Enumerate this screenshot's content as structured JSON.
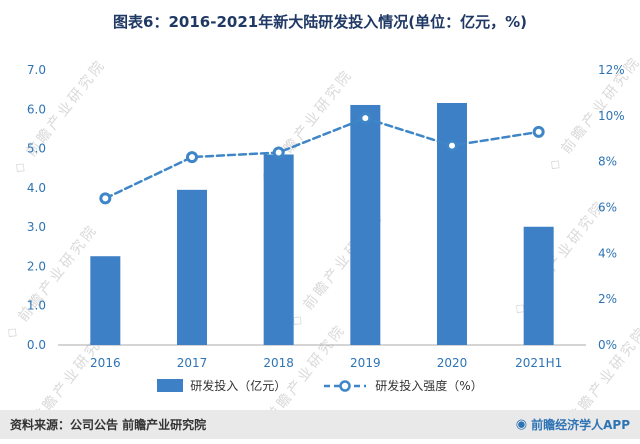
{
  "page": {
    "watermark_text": "前瞻产业研究院",
    "footer": {
      "source": "资料来源：公司公告 前瞻产业研究院",
      "brand": "前瞻经济学人APP",
      "brand_icon": "qianzhan-logo-icon"
    }
  },
  "chart_data": {
    "type": "bar",
    "subtype": "bar+line combo, dual axis",
    "title": "图表6：2016-2021年新大陆研发投入情况(单位：亿元，%)",
    "categories": [
      "2016",
      "2017",
      "2018",
      "2019",
      "2020",
      "2021H1"
    ],
    "series": [
      {
        "name": "研发投入（亿元）",
        "type": "bar",
        "axis": "left",
        "values": [
          2.26,
          3.95,
          4.85,
          6.11,
          6.16,
          3.01
        ]
      },
      {
        "name": "研发投入强度（%）",
        "type": "line",
        "axis": "right",
        "values": [
          6.4,
          8.2,
          8.4,
          9.9,
          8.7,
          9.3
        ]
      }
    ],
    "left_axis": {
      "min": 0,
      "max": 7,
      "step": 1,
      "labels": [
        "0.0",
        "1.0",
        "2.0",
        "3.0",
        "4.0",
        "5.0",
        "6.0",
        "7.0"
      ]
    },
    "right_axis": {
      "min": 0,
      "max": 12,
      "step": 2,
      "labels": [
        "0%",
        "2%",
        "4%",
        "6%",
        "8%",
        "10%",
        "12%"
      ]
    },
    "grid": false,
    "legend_position": "bottom",
    "colors": {
      "bar": "#3E80C6",
      "line": "#3E86C8",
      "axis_label": "#2E74B5",
      "title": "#1F3864",
      "watermark": "#d9d9d9",
      "footer_bg": "#E9E9E9"
    }
  }
}
